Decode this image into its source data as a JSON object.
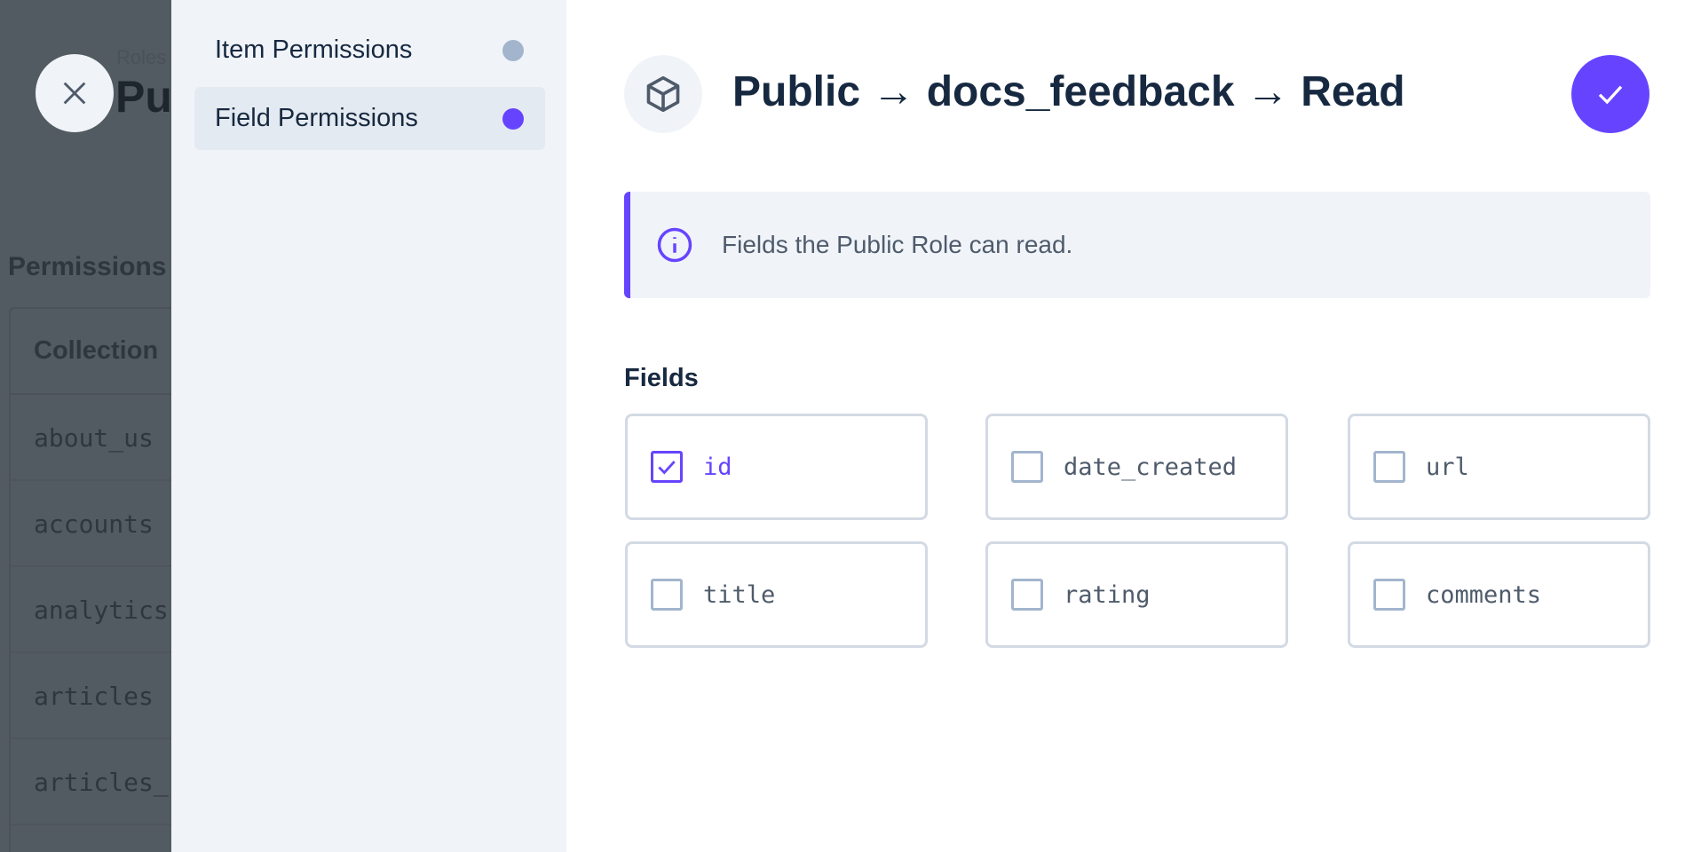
{
  "background": {
    "breadcrumb": "Roles",
    "page_title": "Pu",
    "section_title": "Permissions",
    "table_header": "Collection",
    "rows": [
      "about_us",
      "accounts",
      "analytics",
      "articles",
      "articles_"
    ]
  },
  "nav": {
    "items": [
      {
        "label": "Item Permissions",
        "dot_color": "#a2b5cd",
        "active": false
      },
      {
        "label": "Field Permissions",
        "dot_color": "#6644ff",
        "active": true
      }
    ]
  },
  "header": {
    "icon": "box-icon",
    "title": "Public → docs_feedback → Read",
    "save_icon": "check-icon"
  },
  "notice": {
    "icon": "info-icon",
    "text": "Fields the Public Role can read."
  },
  "fields": {
    "label": "Fields",
    "items": [
      {
        "name": "id",
        "checked": true
      },
      {
        "name": "date_created",
        "checked": false
      },
      {
        "name": "url",
        "checked": false
      },
      {
        "name": "title",
        "checked": false
      },
      {
        "name": "rating",
        "checked": false
      },
      {
        "name": "comments",
        "checked": false
      }
    ]
  },
  "colors": {
    "accent": "#6644ff",
    "text": "#172940",
    "nav_bg": "#f0f4f9"
  }
}
